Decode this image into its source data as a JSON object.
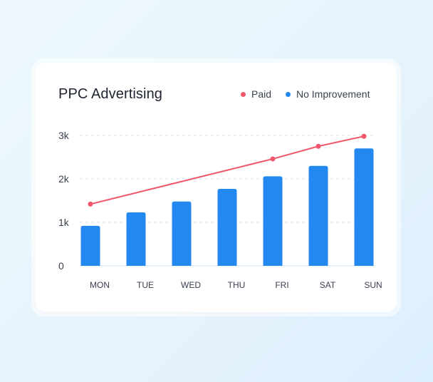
{
  "chart_data": {
    "type": "bar",
    "title": "PPC Advertising",
    "categories": [
      "MON",
      "TUE",
      "WED",
      "THU",
      "FRI",
      "SAT",
      "SUN"
    ],
    "series": [
      {
        "name": "No Improvement",
        "type": "bar",
        "color": "#2388f0",
        "values": [
          920,
          1230,
          1480,
          1770,
          2060,
          2300,
          2700
        ]
      },
      {
        "name": "Paid",
        "type": "line",
        "color": "#f2566b",
        "values": [
          1420,
          null,
          null,
          null,
          2460,
          2750,
          2980
        ]
      }
    ],
    "yticks": [
      "0",
      "1k",
      "2k",
      "3k"
    ],
    "ytick_values": [
      0,
      1000,
      2000,
      3000
    ],
    "ylim": [
      0,
      3000
    ],
    "grid": true,
    "legend": "top-right"
  }
}
